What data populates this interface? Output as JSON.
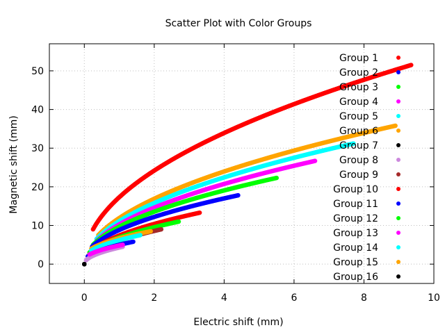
{
  "chart_data": {
    "type": "scatter",
    "title": "Scatter Plot with Color Groups",
    "xlabel": "Electric shift (mm)",
    "ylabel": "Magnetic shift (mm)",
    "xlim": [
      -1,
      10
    ],
    "ylim": [
      -5,
      57
    ],
    "x_ticks": [
      0,
      2,
      4,
      6,
      8,
      10
    ],
    "y_ticks": [
      0,
      10,
      20,
      30,
      40,
      50
    ],
    "x_tick_labels": [
      "0",
      "2",
      "4",
      "6",
      "8",
      "10"
    ],
    "y_tick_labels": [
      "0",
      "10",
      "20",
      "30",
      "40",
      "50"
    ],
    "grid": true,
    "legend_position": "top-right",
    "series": [
      {
        "name": "Group 1",
        "color": "#ff0000",
        "x_start": 0.25,
        "x_end": 9.35,
        "y_start": 9.0,
        "y_end": 51.5
      },
      {
        "name": "Group 2",
        "color": "#0000ff",
        "x_start": 0.22,
        "x_end": 4.4,
        "y_start": 4.5,
        "y_end": 17.8
      },
      {
        "name": "Group 3",
        "color": "#00ff00",
        "x_start": 0.25,
        "x_end": 5.5,
        "y_start": 5.0,
        "y_end": 22.3
      },
      {
        "name": "Group 4",
        "color": "#ff00ff",
        "x_start": 0.35,
        "x_end": 6.6,
        "y_start": 6.0,
        "y_end": 26.7
      },
      {
        "name": "Group 5",
        "color": "#00ffff",
        "x_start": 0.35,
        "x_end": 7.7,
        "y_start": 6.5,
        "y_end": 31.2
      },
      {
        "name": "Group 6",
        "color": "#ffa500",
        "x_start": 0.4,
        "x_end": 8.9,
        "y_start": 7.5,
        "y_end": 35.8
      },
      {
        "name": "Group 7",
        "color": "#000000",
        "x_start": 0.0,
        "x_end": 0.0,
        "y_start": 0.0,
        "y_end": 0.0
      },
      {
        "name": "Group 8",
        "color": "#cc88dd",
        "x_start": 0.05,
        "x_end": 1.1,
        "y_start": 1.0,
        "y_end": 4.5
      },
      {
        "name": "Group 9",
        "color": "#a52a2a",
        "x_start": 0.1,
        "x_end": 2.2,
        "y_start": 2.0,
        "y_end": 9.0
      },
      {
        "name": "Group 10",
        "color": "#ff0000",
        "x_start": 0.15,
        "x_end": 3.3,
        "y_start": 3.0,
        "y_end": 13.3
      },
      {
        "name": "Group 11",
        "color": "#0000ff",
        "x_start": 0.1,
        "x_end": 1.4,
        "y_start": 2.0,
        "y_end": 5.8
      },
      {
        "name": "Group 12",
        "color": "#00ff00",
        "x_start": 0.15,
        "x_end": 2.7,
        "y_start": 3.0,
        "y_end": 11.0
      },
      {
        "name": "Group 13",
        "color": "#ff00ff",
        "x_start": 0.15,
        "x_end": 1.1,
        "y_start": 2.5,
        "y_end": 5.0
      },
      {
        "name": "Group 14",
        "color": "#00ffff",
        "x_start": 0.2,
        "x_end": 1.6,
        "y_start": 3.5,
        "y_end": 7.5
      },
      {
        "name": "Group 15",
        "color": "#ffa500",
        "x_start": 0.2,
        "x_end": 1.9,
        "y_start": 4.0,
        "y_end": 8.5
      },
      {
        "name": "Group 16",
        "color": "#000000",
        "x_start": 0.0,
        "x_end": 0.0,
        "y_start": 0.0,
        "y_end": 0.0
      }
    ]
  }
}
